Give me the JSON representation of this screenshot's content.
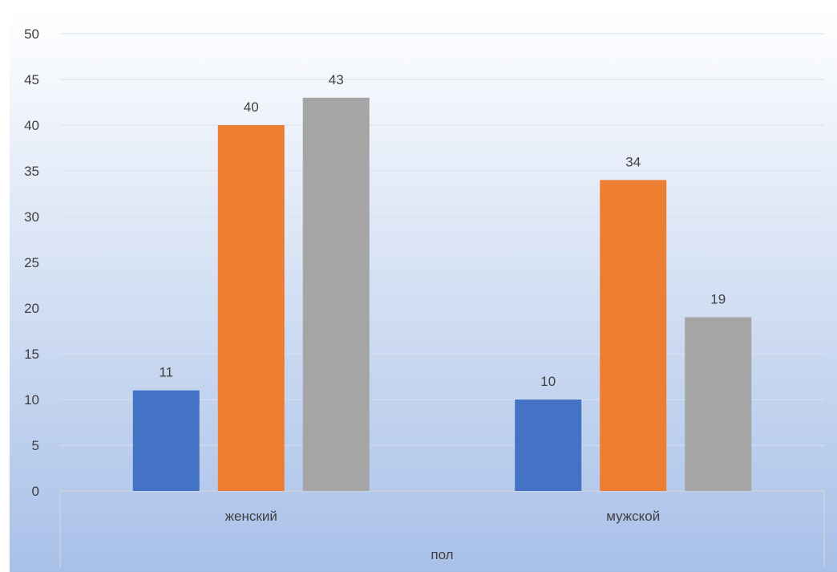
{
  "chart_data": {
    "type": "bar",
    "categories": [
      "женский",
      "мужской"
    ],
    "group_label": "пол",
    "series": [
      {
        "values": [
          11,
          10
        ],
        "color": "#4472C4"
      },
      {
        "values": [
          40,
          34
        ],
        "color": "#ED7D31"
      },
      {
        "values": [
          43,
          19
        ],
        "color": "#A5A5A5"
      }
    ],
    "ylim": [
      0,
      50
    ],
    "yticks": [
      0,
      5,
      10,
      15,
      20,
      25,
      30,
      35,
      40,
      45,
      50
    ],
    "grid": true,
    "data_labels": true,
    "background_gradient": [
      "#ffffff",
      "#a8c0e8"
    ]
  }
}
